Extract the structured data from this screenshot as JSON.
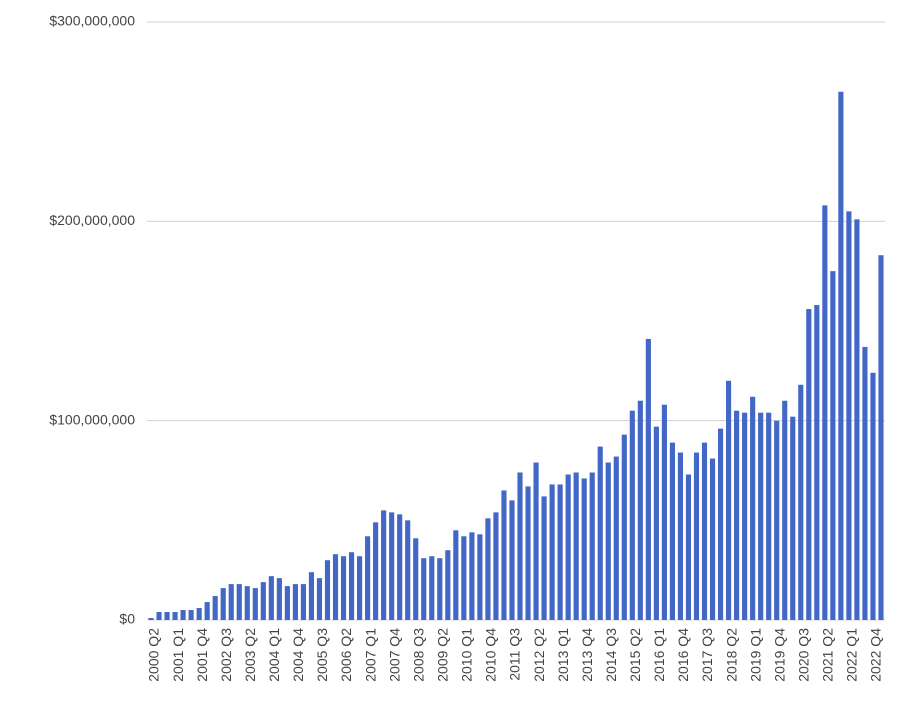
{
  "chart_data": {
    "type": "bar",
    "categories": [
      "2000 Q2",
      null,
      null,
      "2001 Q1",
      null,
      null,
      "2001 Q4",
      null,
      null,
      "2002 Q3",
      null,
      null,
      "2003 Q2",
      null,
      null,
      "2004 Q1",
      null,
      null,
      "2004 Q4",
      null,
      null,
      "2005 Q3",
      null,
      null,
      "2006 Q2",
      null,
      null,
      "2007 Q1",
      null,
      null,
      "2007 Q4",
      null,
      null,
      "2008 Q3",
      null,
      null,
      "2009 Q2",
      null,
      null,
      "2010 Q1",
      null,
      null,
      "2010 Q4",
      null,
      null,
      "2011 Q3",
      null,
      null,
      "2012 Q2",
      null,
      null,
      "2013 Q1",
      null,
      null,
      "2013 Q4",
      null,
      null,
      "2014 Q3",
      null,
      null,
      "2015 Q2",
      null,
      null,
      "2016 Q1",
      null,
      null,
      "2016 Q4",
      null,
      null,
      "2017 Q3",
      null,
      null,
      "2018 Q2",
      null,
      null,
      "2019 Q1",
      null,
      null,
      "2019 Q4",
      null,
      null,
      "2020 Q3",
      null,
      null,
      "2021 Q2",
      null,
      null,
      "2022 Q1",
      null,
      null,
      "2022 Q4",
      null
    ],
    "values": [
      1000000,
      4000000,
      4000000,
      4000000,
      5000000,
      5000000,
      6000000,
      9000000,
      12000000,
      16000000,
      18000000,
      18000000,
      17000000,
      16000000,
      19000000,
      22000000,
      21000000,
      17000000,
      18000000,
      18000000,
      24000000,
      21000000,
      30000000,
      33000000,
      32000000,
      34000000,
      32000000,
      42000000,
      49000000,
      55000000,
      54000000,
      53000000,
      50000000,
      41000000,
      31000000,
      32000000,
      31000000,
      35000000,
      45000000,
      42000000,
      44000000,
      43000000,
      51000000,
      54000000,
      65000000,
      60000000,
      74000000,
      67000000,
      79000000,
      62000000,
      68000000,
      68000000,
      73000000,
      74000000,
      71000000,
      74000000,
      87000000,
      79000000,
      82000000,
      93000000,
      105000000,
      110000000,
      141000000,
      97000000,
      108000000,
      89000000,
      84000000,
      73000000,
      84000000,
      89000000,
      81000000,
      96000000,
      120000000,
      105000000,
      104000000,
      112000000,
      104000000,
      104000000,
      100000000,
      110000000,
      102000000,
      118000000,
      156000000,
      158000000,
      208000000,
      175000000,
      265000000,
      205000000,
      201000000,
      137000000,
      124000000,
      183000000
    ],
    "color": "#4267c6",
    "ylim": [
      0,
      300000000
    ],
    "yticks": [
      {
        "value": 0,
        "label": "$0"
      },
      {
        "value": 100000000,
        "label": "$100,000,000"
      },
      {
        "value": 200000000,
        "label": "$200,000,000"
      },
      {
        "value": 300000000,
        "label": "$300,000,000"
      }
    ],
    "grid": true
  }
}
